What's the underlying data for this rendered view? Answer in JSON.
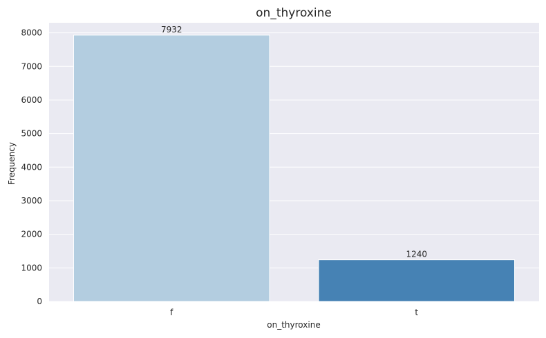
{
  "chart_data": {
    "type": "bar",
    "title": "on_thyroxine",
    "xlabel": "on_thyroxine",
    "ylabel": "Frequency",
    "categories": [
      "f",
      "t"
    ],
    "values": [
      7932,
      1240
    ],
    "data_labels": [
      "7932",
      "1240"
    ],
    "bar_colors": [
      "#b3cde0",
      "#4682b4"
    ],
    "ylim": [
      0,
      8300
    ],
    "yticks": [
      0,
      1000,
      2000,
      3000,
      4000,
      5000,
      6000,
      7000,
      8000
    ],
    "ytick_labels": [
      "0",
      "1000",
      "2000",
      "3000",
      "4000",
      "5000",
      "6000",
      "7000",
      "8000"
    ],
    "grid": true,
    "background": "#eaeaf2",
    "grid_color": "#ffffff"
  }
}
